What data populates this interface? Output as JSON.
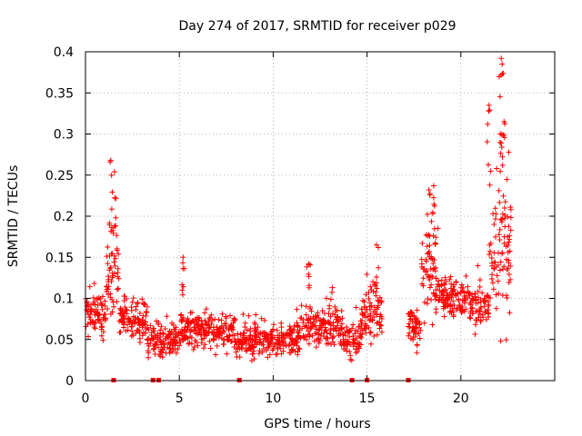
{
  "chart_data": {
    "type": "scatter",
    "title": "Day 274 of 2017, SRMTID for receiver p029",
    "xlabel": "GPS time / hours",
    "ylabel": "SRMTID / TECUs",
    "xlim": [
      0,
      25
    ],
    "ylim": [
      0,
      0.4
    ],
    "x_ticks": [
      0,
      5,
      10,
      15,
      20
    ],
    "x_tick_labels": [
      "0",
      "5",
      "10",
      "15",
      "20"
    ],
    "y_ticks": [
      0,
      0.05,
      0.1,
      0.15,
      0.2,
      0.25,
      0.3,
      0.35,
      0.4
    ],
    "y_tick_labels": [
      "0",
      "0.05",
      "0.1",
      "0.15",
      "0.2",
      "0.25",
      "0.3",
      "0.35",
      "0.4"
    ],
    "grid": true,
    "marker": "+",
    "color": "#ff0000",
    "zero_markers_x": [
      1.5,
      3.6,
      3.9,
      8.2,
      14.2,
      15.0,
      17.2
    ],
    "envelope": [
      {
        "from": 0.0,
        "to": 0.35,
        "base": 0.08,
        "spread": 0.035
      },
      {
        "from": 0.35,
        "to": 1.1,
        "base": 0.08,
        "spread": 0.035
      },
      {
        "from": 1.1,
        "to": 1.8,
        "base": 0.13,
        "spread": 0.06
      },
      {
        "from": 1.8,
        "to": 3.3,
        "base": 0.075,
        "spread": 0.035
      },
      {
        "from": 3.3,
        "to": 5.0,
        "base": 0.05,
        "spread": 0.025
      },
      {
        "from": 5.0,
        "to": 8.0,
        "base": 0.06,
        "spread": 0.03
      },
      {
        "from": 8.0,
        "to": 11.5,
        "base": 0.05,
        "spread": 0.025
      },
      {
        "from": 11.5,
        "to": 13.7,
        "base": 0.065,
        "spread": 0.035
      },
      {
        "from": 13.7,
        "to": 14.7,
        "base": 0.05,
        "spread": 0.025
      },
      {
        "from": 14.7,
        "to": 15.8,
        "base": 0.08,
        "spread": 0.045
      },
      {
        "from": 17.2,
        "to": 17.9,
        "base": 0.065,
        "spread": 0.03
      },
      {
        "from": 17.9,
        "to": 18.8,
        "base": 0.13,
        "spread": 0.07
      },
      {
        "from": 18.8,
        "to": 20.5,
        "base": 0.1,
        "spread": 0.035
      },
      {
        "from": 20.5,
        "to": 21.5,
        "base": 0.09,
        "spread": 0.035
      },
      {
        "from": 21.5,
        "to": 22.7,
        "base": 0.16,
        "spread": 0.12
      }
    ],
    "peaks": [
      {
        "x": 1.35,
        "y": 0.268
      },
      {
        "x": 1.55,
        "y": 0.254
      },
      {
        "x": 5.2,
        "y": 0.15
      },
      {
        "x": 11.9,
        "y": 0.142
      },
      {
        "x": 15.5,
        "y": 0.165
      },
      {
        "x": 18.3,
        "y": 0.232
      },
      {
        "x": 18.55,
        "y": 0.237
      },
      {
        "x": 21.5,
        "y": 0.335
      },
      {
        "x": 22.15,
        "y": 0.392
      },
      {
        "x": 22.2,
        "y": 0.385
      },
      {
        "x": 22.3,
        "y": 0.315
      }
    ]
  }
}
